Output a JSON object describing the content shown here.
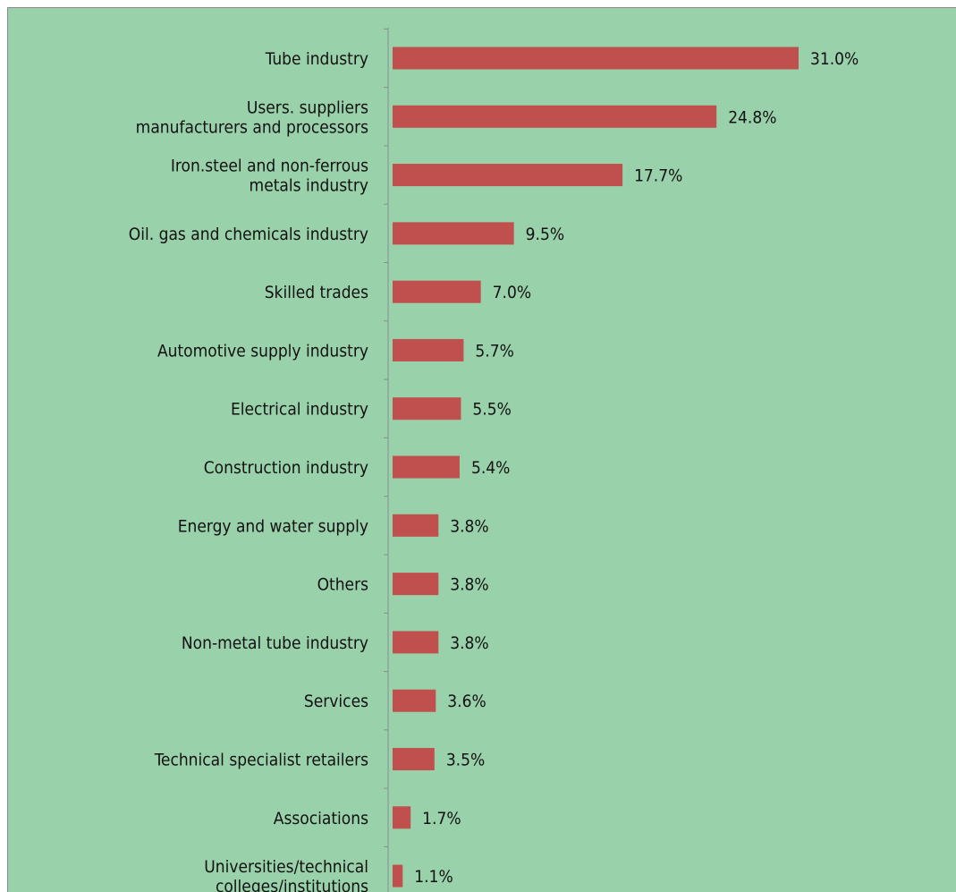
{
  "chart_data": {
    "type": "bar",
    "orientation": "horizontal",
    "categories": [
      [
        "Tube industry"
      ],
      [
        "Users. suppliers",
        "manufacturers and processors"
      ],
      [
        "Iron.steel and non-ferrous",
        "metals industry"
      ],
      [
        "Oil. gas and chemicals industry"
      ],
      [
        "Skilled trades"
      ],
      [
        "Automotive supply industry"
      ],
      [
        "Electrical industry"
      ],
      [
        "Construction industry"
      ],
      [
        "Energy and water supply"
      ],
      [
        "Others"
      ],
      [
        "Non-metal tube industry"
      ],
      [
        "Services"
      ],
      [
        "Technical specialist retailers"
      ],
      [
        "Associations"
      ],
      [
        "Universities/technical",
        "colleges/institutions"
      ]
    ],
    "values": [
      31.0,
      24.8,
      17.7,
      9.5,
      7.0,
      5.7,
      5.5,
      5.4,
      3.8,
      3.8,
      3.8,
      3.6,
      3.5,
      1.7,
      1.1
    ],
    "value_labels": [
      "31.0%",
      "24.8%",
      "17.7%",
      "9.5%",
      "7.0%",
      "5.7%",
      "5.5%",
      "5.4%",
      "3.8%",
      "3.8%",
      "3.8%",
      "3.6%",
      "3.5%",
      "1.7%",
      "1.1%"
    ],
    "unit": "%",
    "title": "",
    "xlabel": "",
    "ylabel": "",
    "xlim": [
      0,
      31.0
    ],
    "grid": false,
    "legend": "none",
    "colors": {
      "bar": "#C0504D",
      "background": "#99D1AB",
      "axis": "#8C8C8C",
      "text": "#111111"
    }
  }
}
